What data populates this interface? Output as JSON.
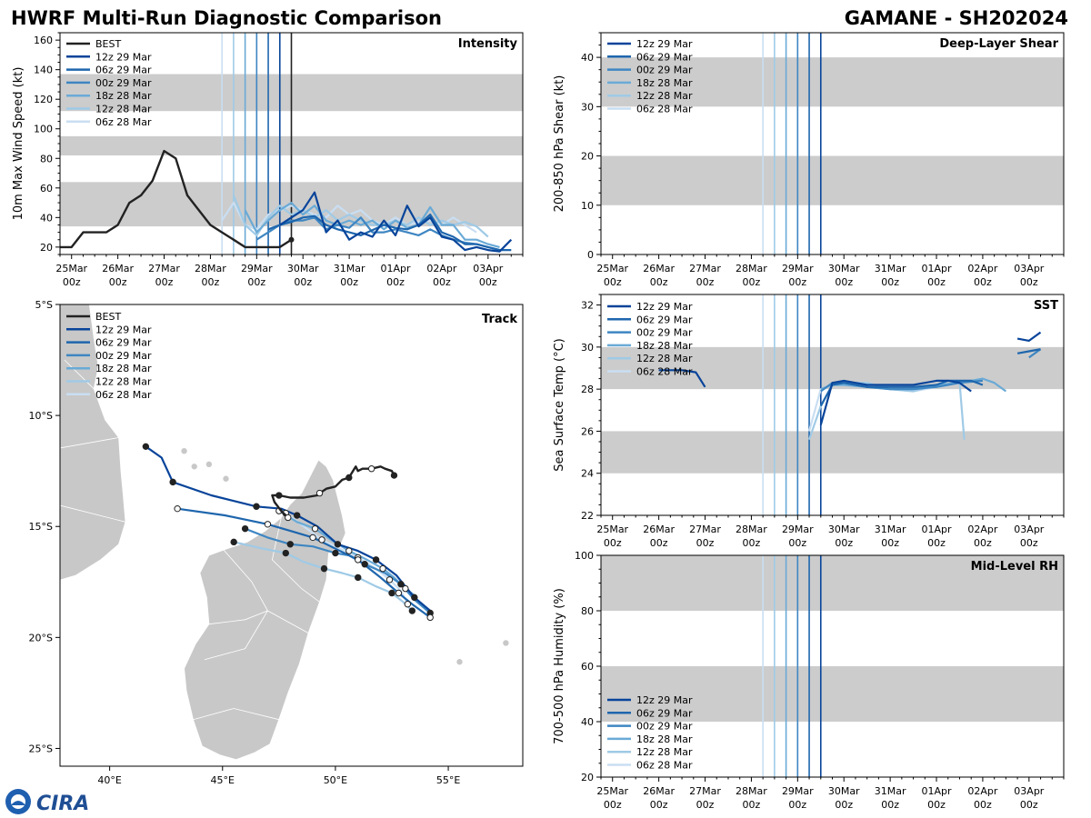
{
  "header": {
    "title": "HWRF Multi-Run Diagnostic Comparison",
    "storm": "GAMANE - SH202024"
  },
  "logo": {
    "text": "CIRA"
  },
  "colors": {
    "best": "#222222",
    "runs": [
      "#08449a",
      "#1e66ad",
      "#3e86c2",
      "#6aaad6",
      "#9fcae6",
      "#c9def2"
    ],
    "band": "#cccccc",
    "land": "#c8c8c8"
  },
  "legend_runs": [
    "12z 29 Mar",
    "06z 29 Mar",
    "00z 29 Mar",
    "18z 28 Mar",
    "12z 28 Mar",
    "06z 28 Mar"
  ],
  "legend_best": "BEST",
  "time_ticks": [
    {
      "t": 0,
      "d": "25Mar",
      "h": "00z"
    },
    {
      "t": 1,
      "d": "26Mar",
      "h": "00z"
    },
    {
      "t": 2,
      "d": "27Mar",
      "h": "00z"
    },
    {
      "t": 3,
      "d": "28Mar",
      "h": "00z"
    },
    {
      "t": 4,
      "d": "29Mar",
      "h": "00z"
    },
    {
      "t": 5,
      "d": "30Mar",
      "h": "00z"
    },
    {
      "t": 6,
      "d": "31Mar",
      "h": "00z"
    },
    {
      "t": 7,
      "d": "01Apr",
      "h": "00z"
    },
    {
      "t": 8,
      "d": "02Apr",
      "h": "00z"
    },
    {
      "t": 9,
      "d": "03Apr",
      "h": "00z"
    }
  ],
  "init_times": [
    4.5,
    4.25,
    4.0,
    3.75,
    3.5,
    3.25
  ],
  "chart_data": [
    {
      "type": "line",
      "id": "intensity",
      "title": "Intensity",
      "ylabel": "10m Max Wind Speed (kt)",
      "xlim": [
        -0.25,
        9.75
      ],
      "ylim": [
        15,
        165
      ],
      "yticks": [
        20,
        40,
        60,
        80,
        100,
        120,
        140,
        160
      ],
      "bands": [
        [
          112,
          137
        ],
        [
          82,
          95
        ],
        [
          34,
          64
        ]
      ],
      "best": {
        "name": "BEST",
        "t": [
          -0.25,
          0,
          0.25,
          0.5,
          0.75,
          1,
          1.25,
          1.5,
          1.75,
          2,
          2.25,
          2.5,
          2.75,
          3,
          3.25,
          3.5,
          3.75,
          4,
          4.25,
          4.5,
          4.75
        ],
        "values": [
          20,
          20,
          30,
          30,
          30,
          35,
          50,
          55,
          65,
          85,
          80,
          55,
          45,
          35,
          30,
          25,
          20,
          20,
          20,
          20,
          25
        ]
      },
      "series": [
        {
          "name": "12z 29 Mar",
          "t": [
            4.5,
            4.75,
            5,
            5.25,
            5.5,
            5.75,
            6,
            6.25,
            6.5,
            6.75,
            7,
            7.25,
            7.5,
            7.75,
            8,
            8.25,
            8.5,
            8.75,
            9,
            9.25,
            9.5
          ],
          "values": [
            35,
            40,
            45,
            57,
            30,
            38,
            25,
            30,
            27,
            38,
            28,
            48,
            34,
            40,
            27,
            25,
            18,
            20,
            18,
            17,
            25
          ]
        },
        {
          "name": "06z 29 Mar",
          "t": [
            4.25,
            4.5,
            4.75,
            5,
            5.25,
            5.5,
            5.75,
            6,
            6.25,
            6.75,
            7,
            7.25,
            7.5,
            7.75,
            8,
            8.25,
            8.5,
            8.75,
            9,
            9.25,
            9.5
          ],
          "values": [
            32,
            35,
            37,
            40,
            41,
            35,
            32,
            30,
            28,
            35,
            33,
            32,
            35,
            42,
            30,
            27,
            22,
            22,
            20,
            18,
            18
          ]
        },
        {
          "name": "00z 29 Mar",
          "t": [
            4,
            4.25,
            4.5,
            4.75,
            5,
            5.25,
            5.5,
            5.75,
            6,
            6.25,
            6.5,
            6.75,
            7,
            7.25,
            7.5,
            7.75,
            8,
            8.25,
            8.5,
            8.75,
            9,
            9.25
          ],
          "values": [
            25,
            30,
            35,
            38,
            38,
            40,
            32,
            35,
            33,
            40,
            30,
            30,
            32,
            30,
            28,
            32,
            28,
            25,
            23,
            22,
            20,
            18
          ]
        },
        {
          "name": "18z 28 Mar",
          "t": [
            3.75,
            4,
            4.25,
            4.5,
            4.75,
            5,
            5.25,
            5.5,
            5.75,
            6,
            6.25,
            6.5,
            6.75,
            7,
            7.25,
            7.5,
            7.75,
            8,
            8.25,
            8.5,
            8.75,
            9,
            9.25
          ],
          "values": [
            45,
            30,
            38,
            45,
            50,
            42,
            48,
            38,
            35,
            38,
            35,
            38,
            32,
            38,
            33,
            35,
            47,
            35,
            35,
            25,
            25,
            22,
            20
          ]
        },
        {
          "name": "12z 28 Mar",
          "t": [
            3.5,
            3.75,
            4,
            4.25,
            4.5,
            4.75,
            5,
            5.25,
            5.5,
            5.75,
            6,
            6.25,
            6.5,
            6.75,
            7,
            7.25,
            7.5,
            7.75,
            8,
            8.25,
            8.5,
            8.75,
            9
          ],
          "values": [
            55,
            35,
            28,
            40,
            48,
            42,
            45,
            40,
            45,
            38,
            42,
            38,
            35,
            35,
            38,
            35,
            40,
            35,
            38,
            35,
            37,
            34,
            27
          ]
        },
        {
          "name": "06z 28 Mar",
          "t": [
            3.25,
            3.5,
            3.75,
            4,
            4.25,
            4.5,
            4.75,
            5,
            5.25,
            5.5,
            5.75,
            6,
            6.25,
            6.5,
            6.75,
            7,
            7.25,
            7.5,
            7.75,
            8,
            8.25,
            8.5,
            8.75
          ],
          "values": [
            38,
            50,
            35,
            32,
            42,
            45,
            48,
            45,
            42,
            40,
            48,
            42,
            45,
            38,
            35,
            40,
            35,
            37,
            38,
            35,
            40,
            35,
            30
          ]
        }
      ]
    },
    {
      "type": "line",
      "id": "shear",
      "title": "Deep-Layer Shear",
      "ylabel": "200-850 hPa Shear (kt)",
      "xlim": [
        -0.25,
        9.75
      ],
      "ylim": [
        0,
        45
      ],
      "yticks": [
        0,
        10,
        20,
        30,
        40
      ],
      "bands": [
        [
          30,
          40
        ],
        [
          10,
          20
        ]
      ],
      "series": []
    },
    {
      "type": "line",
      "id": "sst",
      "title": "SST",
      "ylabel": "Sea Surface Temp (°C)",
      "xlim": [
        -0.25,
        9.75
      ],
      "ylim": [
        22,
        32.5
      ],
      "yticks": [
        22,
        24,
        26,
        28,
        30,
        32
      ],
      "bands": [
        [
          28,
          30
        ],
        [
          24,
          26
        ]
      ],
      "series": [
        {
          "name": "12z 29 Mar",
          "segments": [
            {
              "t": [
                1,
                1.5,
                1.8,
                2
              ],
              "values": [
                28.9,
                28.9,
                28.8,
                28.1
              ]
            },
            {
              "t": [
                4.5,
                4.75,
                5,
                5.5,
                6,
                6.5,
                7,
                7.25,
                7.5,
                7.75
              ],
              "values": [
                26.3,
                28.3,
                28.4,
                28.2,
                28.2,
                28.2,
                28.4,
                28.4,
                28.3,
                27.9
              ]
            },
            {
              "t": [
                8.75,
                9,
                9.25
              ],
              "values": [
                30.4,
                30.3,
                30.7
              ]
            }
          ]
        },
        {
          "name": "06z 29 Mar",
          "segments": [
            {
              "t": [
                4.5,
                4.75,
                5,
                5.5,
                6,
                6.5,
                7,
                7.25,
                7.5,
                7.75,
                8
              ],
              "values": [
                27.2,
                28.2,
                28.3,
                28.1,
                28.1,
                28.1,
                28.2,
                28.4,
                28.4,
                28.4,
                28.2
              ]
            },
            {
              "t": [
                8.75,
                9,
                9.25
              ],
              "values": [
                29.7,
                29.8,
                29.9
              ]
            }
          ]
        },
        {
          "name": "00z 29 Mar",
          "segments": [
            {
              "t": [
                4.5,
                4.75,
                5,
                5.5,
                6,
                6.5,
                7,
                7.5,
                8
              ],
              "values": [
                27.9,
                28.3,
                28.3,
                28.1,
                28.0,
                28.0,
                28.1,
                28.3,
                28.4
              ]
            },
            {
              "t": [
                9,
                9.25
              ],
              "values": [
                29.5,
                29.9
              ]
            }
          ]
        },
        {
          "name": "18z 28 Mar",
          "segments": [
            {
              "t": [
                4.5,
                4.75,
                5,
                5.5,
                6,
                6.5,
                7,
                7.5,
                7.75,
                8,
                8.25,
                8.5
              ],
              "values": [
                28.0,
                28.2,
                28.2,
                28.1,
                28.0,
                28.0,
                28.2,
                28.3,
                28.4,
                28.5,
                28.3,
                27.9
              ]
            }
          ]
        },
        {
          "name": "12z 28 Mar",
          "segments": [
            {
              "t": [
                4.25,
                4.5,
                4.75,
                5,
                5.5,
                6,
                6.5,
                7,
                7.25,
                7.5,
                7.6
              ],
              "values": [
                25.6,
                27.2,
                28.2,
                28.3,
                28.3,
                28.0,
                27.9,
                28.2,
                28.4,
                28.3,
                25.6
              ]
            }
          ]
        },
        {
          "name": "06z 28 Mar",
          "segments": [
            {
              "t": [
                4.25,
                4.5,
                4.75,
                5,
                5.5,
                6,
                6.5,
                7,
                7.5
              ],
              "values": [
                26.0,
                28.0,
                28.2,
                28.3,
                28.2,
                28.0,
                27.9,
                28.1,
                28.3
              ]
            }
          ]
        }
      ]
    },
    {
      "type": "line",
      "id": "rh",
      "title": "Mid-Level RH",
      "ylabel": "700-500 hPa Humidity (%)",
      "xlim": [
        -0.25,
        9.75
      ],
      "ylim": [
        20,
        100
      ],
      "yticks": [
        20,
        40,
        60,
        80,
        100
      ],
      "bands": [
        [
          80,
          100
        ],
        [
          40,
          60
        ]
      ],
      "series": []
    },
    {
      "type": "track",
      "id": "track",
      "title": "Track",
      "xlim": [
        37.8,
        58.3
      ],
      "ylim": [
        -25.8,
        -5.0
      ],
      "xticks": [
        {
          "v": 40,
          "label": "40°E"
        },
        {
          "v": 45,
          "label": "45°E"
        },
        {
          "v": 50,
          "label": "50°E"
        },
        {
          "v": 55,
          "label": "55°E"
        }
      ],
      "yticks": [
        {
          "v": -5,
          "label": "5°S"
        },
        {
          "v": -10,
          "label": "10°S"
        },
        {
          "v": -15,
          "label": "15°S"
        },
        {
          "v": -20,
          "label": "20°S"
        },
        {
          "v": -25,
          "label": "25°S"
        }
      ],
      "best": {
        "name": "BEST",
        "lon": [
          52.6,
          52.5,
          52.2,
          52.0,
          51.6,
          51.2,
          51.0,
          50.9,
          50.6,
          50.3,
          50.0,
          49.6,
          49.3,
          49.2,
          48.6,
          48.0,
          47.5,
          47.2,
          47.3,
          47.6,
          47.9
        ],
        "lat": [
          -12.7,
          -12.5,
          -12.4,
          -12.3,
          -12.4,
          -12.4,
          -12.5,
          -12.3,
          -12.8,
          -12.9,
          -13.2,
          -13.3,
          -13.5,
          -13.6,
          -13.7,
          -13.7,
          -13.6,
          -13.6,
          -13.9,
          -14.3,
          -14.6
        ]
      },
      "series": [
        {
          "name": "12z 29 Mar",
          "lon": [
            41.6,
            42.3,
            42.8,
            44.5,
            46.5,
            47.6,
            48.3,
            49.2,
            50.1,
            51.0,
            51.8,
            52.7,
            53.5,
            54.2
          ],
          "lat": [
            -11.4,
            -11.9,
            -13.0,
            -13.6,
            -14.1,
            -14.2,
            -14.5,
            -15.0,
            -15.8,
            -16.1,
            -16.5,
            -17.2,
            -18.2,
            -18.8
          ]
        },
        {
          "name": "06z 29 Mar",
          "lon": [
            43.0,
            45.1,
            47.0,
            48.0,
            49.0,
            50.0,
            51.0,
            52.0,
            52.8,
            53.4,
            54.2
          ],
          "lat": [
            -14.2,
            -14.5,
            -14.9,
            -15.2,
            -15.5,
            -16.0,
            -16.5,
            -17.3,
            -18.0,
            -18.5,
            -19.1
          ]
        },
        {
          "name": "00z 29 Mar",
          "lon": [
            46.0,
            47.0,
            48.0,
            49.0,
            50.0,
            50.6,
            51.3,
            52.2,
            52.9,
            53.5,
            54.2
          ],
          "lat": [
            -15.1,
            -15.5,
            -15.8,
            -15.9,
            -16.2,
            -16.3,
            -16.7,
            -17.1,
            -17.6,
            -18.3,
            -18.9
          ]
        },
        {
          "name": "18z 28 Mar",
          "lon": [
            47.5,
            48.3,
            49.1,
            49.8,
            50.6,
            51.4,
            52.1,
            52.6,
            53.1,
            53.5
          ],
          "lat": [
            -14.3,
            -14.8,
            -15.1,
            -15.6,
            -16.1,
            -16.5,
            -16.9,
            -17.3,
            -17.8,
            -18.1
          ]
        },
        {
          "name": "12z 28 Mar",
          "lon": [
            45.5,
            46.8,
            47.8,
            48.6,
            49.5,
            50.3,
            51.0,
            51.8,
            52.5,
            53.0,
            53.4
          ],
          "lat": [
            -15.7,
            -16.0,
            -16.2,
            -16.6,
            -16.9,
            -17.1,
            -17.3,
            -17.7,
            -18.0,
            -18.4,
            -18.8
          ]
        },
        {
          "name": "06z 28 Mar",
          "lon": [
            47.8,
            48.6,
            49.4,
            50.2,
            51.0,
            51.8,
            52.4,
            52.9,
            53.2
          ],
          "lat": [
            -14.4,
            -15.0,
            -15.6,
            -16.0,
            -16.4,
            -16.9,
            -17.4,
            -17.9,
            -18.5
          ]
        }
      ]
    }
  ]
}
